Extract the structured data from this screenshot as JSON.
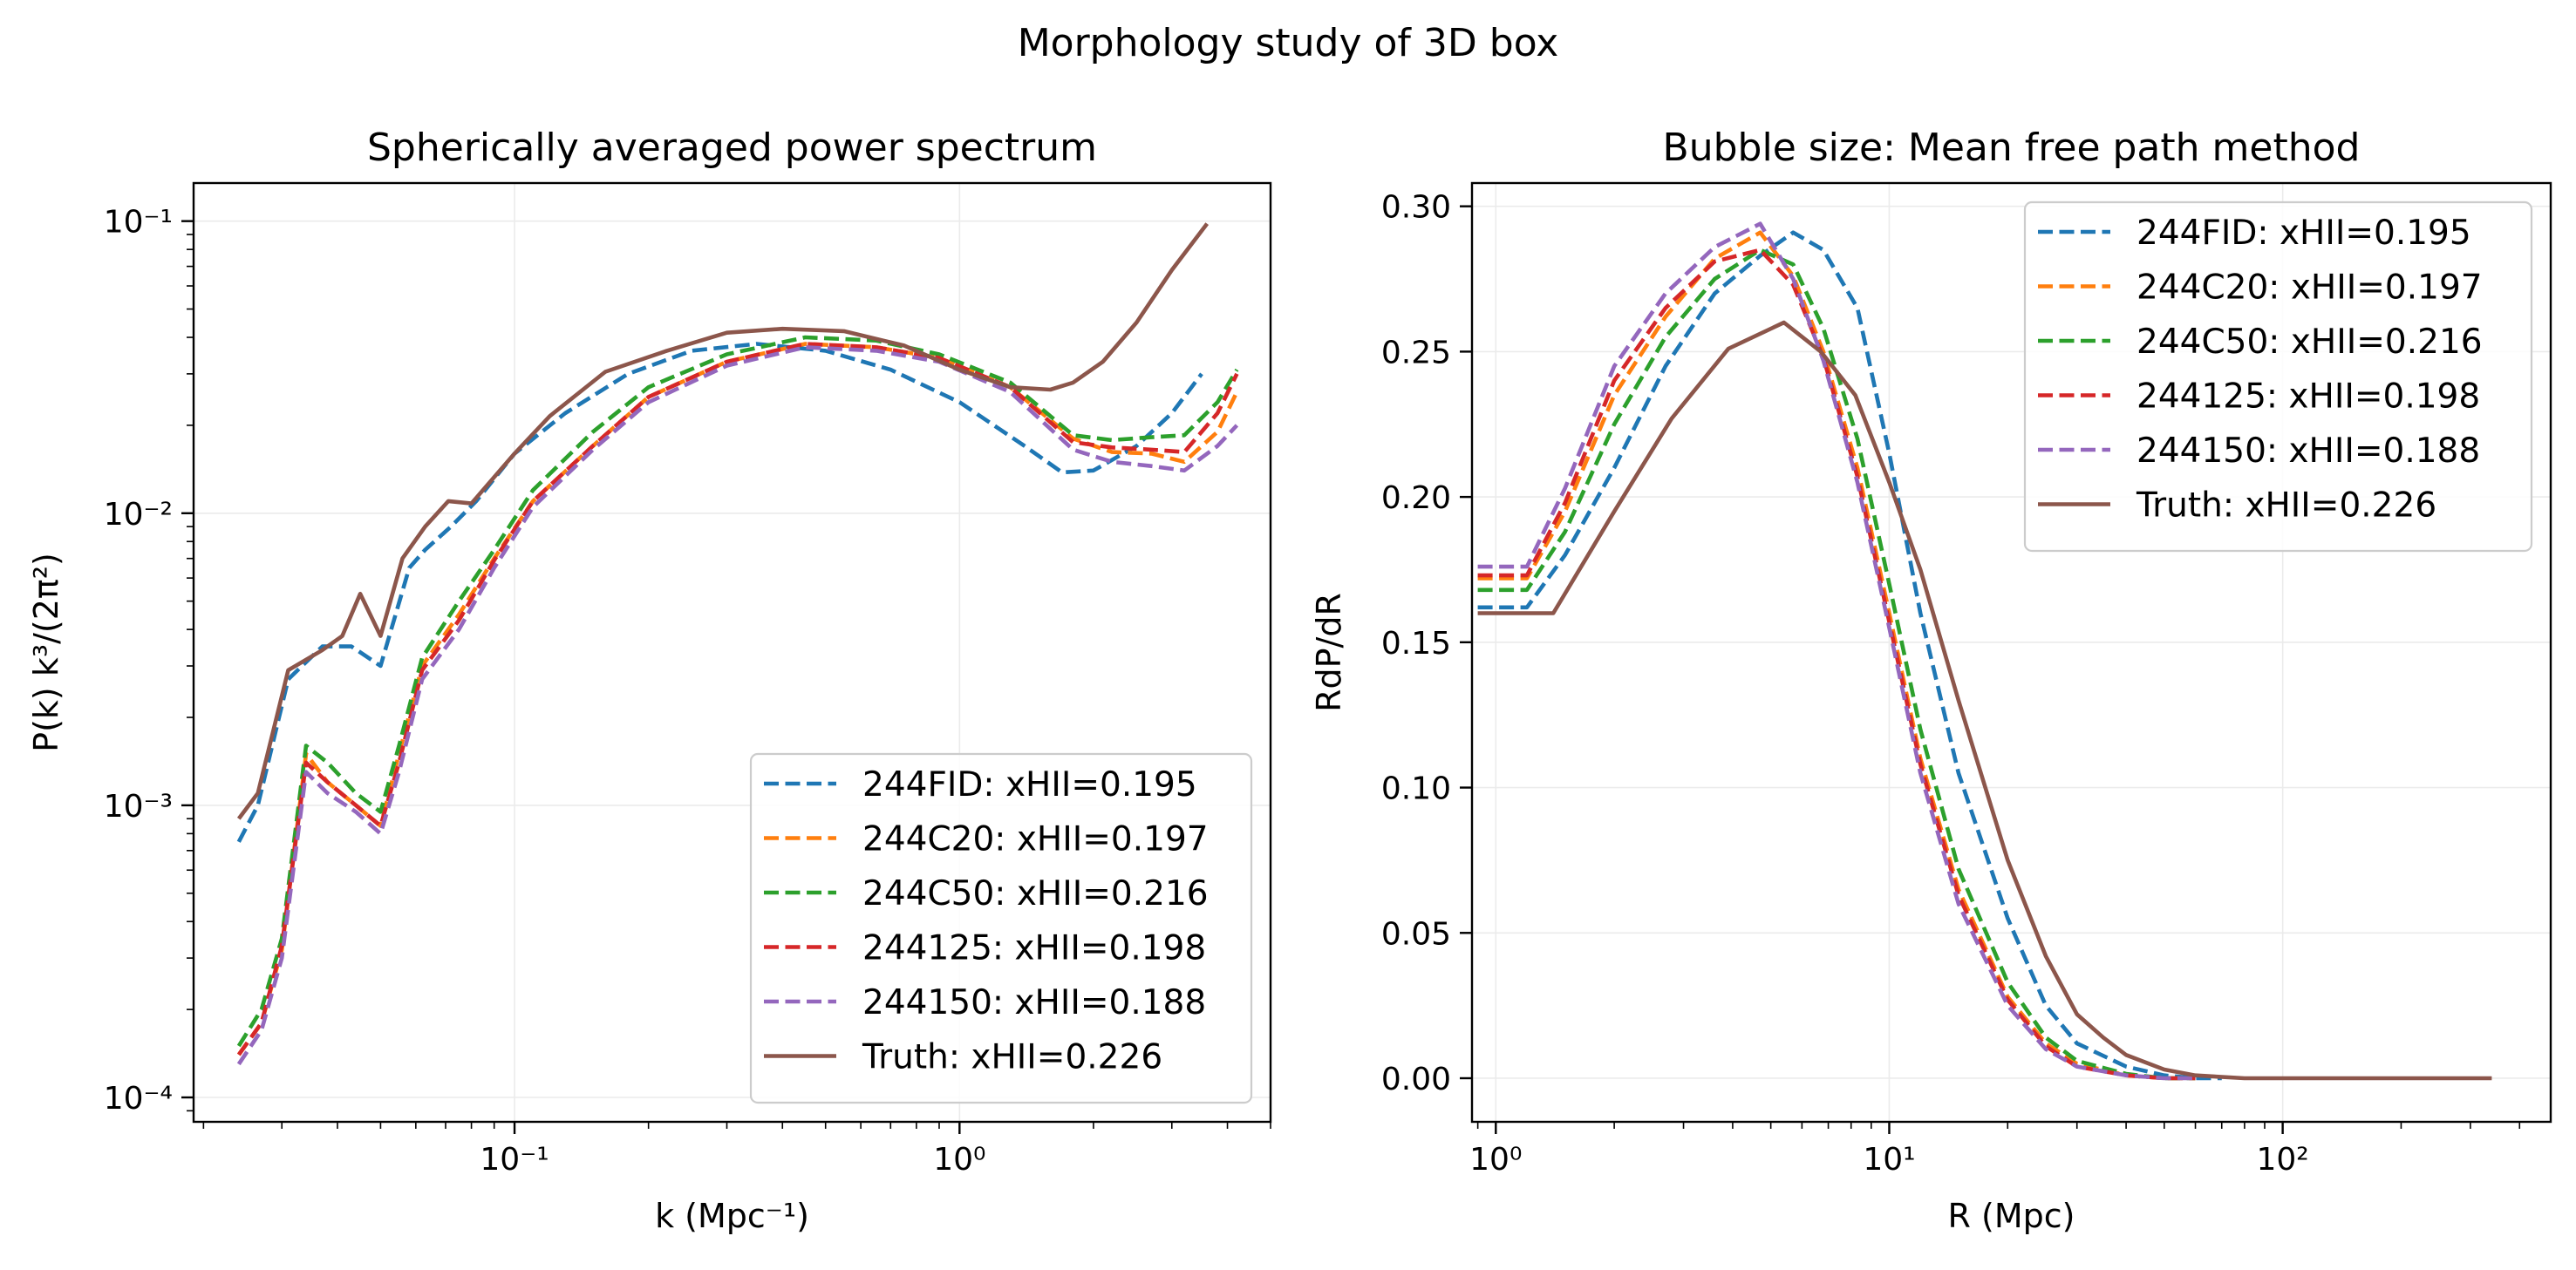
{
  "figure": {
    "suptitle": "Morphology study of 3D box"
  },
  "chart_data": [
    {
      "id": "ps",
      "type": "line",
      "title": "Spherically averaged power spectrum",
      "xlabel": "k (Mpc⁻¹)",
      "ylabel": "P(k) k³/(2π²)",
      "xscale": "log",
      "yscale": "log",
      "xlim": [
        0.019,
        5.0
      ],
      "ylim": [
        8.25e-05,
        0.135
      ],
      "xticks": [
        {
          "value": 0.1,
          "label": "10⁻¹"
        },
        {
          "value": 1,
          "label": "10⁰"
        }
      ],
      "yticks": [
        {
          "value": 0.0001,
          "label": "10⁻⁴"
        },
        {
          "value": 0.001,
          "label": "10⁻³"
        },
        {
          "value": 0.01,
          "label": "10⁻²"
        },
        {
          "value": 0.1,
          "label": "10⁻¹"
        }
      ],
      "grid": true,
      "legend_position": "lower-right",
      "series": [
        {
          "name": "244FID: xHII=0.195",
          "color": "#1f77b4",
          "dash": "dashed",
          "x": [
            0.024,
            0.0265,
            0.031,
            0.037,
            0.043,
            0.05,
            0.058,
            0.063,
            0.072,
            0.082,
            0.1,
            0.13,
            0.18,
            0.25,
            0.35,
            0.5,
            0.7,
            1.0,
            1.4,
            1.7,
            2.0,
            2.5,
            3.0,
            3.5
          ],
          "y": [
            0.00075,
            0.001,
            0.0027,
            0.0035,
            0.0035,
            0.003,
            0.0065,
            0.0075,
            0.009,
            0.011,
            0.016,
            0.022,
            0.03,
            0.036,
            0.038,
            0.036,
            0.031,
            0.024,
            0.017,
            0.0138,
            0.014,
            0.017,
            0.022,
            0.03
          ]
        },
        {
          "name": "244C20: xHII=0.197",
          "color": "#ff7f0e",
          "dash": "dashed",
          "x": [
            0.024,
            0.027,
            0.03,
            0.034,
            0.038,
            0.044,
            0.05,
            0.055,
            0.062,
            0.075,
            0.09,
            0.11,
            0.15,
            0.2,
            0.3,
            0.45,
            0.65,
            0.9,
            1.3,
            1.8,
            2.2,
            2.7,
            3.2,
            3.8,
            4.2
          ],
          "y": [
            0.00014,
            0.00018,
            0.00032,
            0.0015,
            0.0012,
            0.001,
            0.00085,
            0.0015,
            0.003,
            0.0045,
            0.007,
            0.011,
            0.017,
            0.025,
            0.033,
            0.038,
            0.037,
            0.034,
            0.027,
            0.018,
            0.0162,
            0.016,
            0.015,
            0.019,
            0.026
          ]
        },
        {
          "name": "244C50: xHII=0.216",
          "color": "#2ca02c",
          "dash": "dashed",
          "x": [
            0.024,
            0.027,
            0.03,
            0.034,
            0.038,
            0.044,
            0.05,
            0.055,
            0.062,
            0.075,
            0.09,
            0.11,
            0.15,
            0.2,
            0.3,
            0.45,
            0.65,
            0.9,
            1.3,
            1.8,
            2.2,
            2.7,
            3.2,
            3.8,
            4.2
          ],
          "y": [
            0.00015,
            0.0002,
            0.00035,
            0.0016,
            0.0014,
            0.0011,
            0.00095,
            0.0016,
            0.0032,
            0.005,
            0.0075,
            0.012,
            0.019,
            0.027,
            0.035,
            0.04,
            0.039,
            0.035,
            0.028,
            0.0185,
            0.0178,
            0.0182,
            0.0185,
            0.024,
            0.031
          ]
        },
        {
          "name": "244125: xHII=0.198",
          "color": "#d62728",
          "dash": "dashed",
          "x": [
            0.024,
            0.027,
            0.03,
            0.034,
            0.038,
            0.044,
            0.05,
            0.055,
            0.062,
            0.075,
            0.09,
            0.11,
            0.15,
            0.2,
            0.3,
            0.45,
            0.65,
            0.9,
            1.3,
            1.8,
            2.2,
            2.7,
            3.2,
            3.8,
            4.2
          ],
          "y": [
            0.00014,
            0.00018,
            0.00033,
            0.0014,
            0.0012,
            0.001,
            0.00085,
            0.0014,
            0.0029,
            0.0043,
            0.0069,
            0.011,
            0.017,
            0.025,
            0.033,
            0.038,
            0.037,
            0.034,
            0.027,
            0.0175,
            0.0168,
            0.0165,
            0.0162,
            0.022,
            0.03
          ]
        },
        {
          "name": "244150: xHII=0.188",
          "color": "#9467bd",
          "dash": "dashed",
          "x": [
            0.024,
            0.027,
            0.03,
            0.034,
            0.038,
            0.044,
            0.05,
            0.055,
            0.062,
            0.075,
            0.09,
            0.11,
            0.15,
            0.2,
            0.3,
            0.45,
            0.65,
            0.9,
            1.3,
            1.8,
            2.2,
            2.7,
            3.2,
            3.8,
            4.2
          ],
          "y": [
            0.00013,
            0.00017,
            0.0003,
            0.0013,
            0.0011,
            0.00095,
            0.0008,
            0.0013,
            0.0027,
            0.004,
            0.0065,
            0.0105,
            0.0165,
            0.024,
            0.032,
            0.037,
            0.036,
            0.033,
            0.026,
            0.0165,
            0.015,
            0.0145,
            0.014,
            0.017,
            0.02
          ]
        },
        {
          "name": "Truth: xHII=0.226",
          "color": "#8c564b",
          "dash": "solid",
          "x": [
            0.024,
            0.0265,
            0.031,
            0.037,
            0.041,
            0.045,
            0.05,
            0.056,
            0.063,
            0.071,
            0.08,
            0.1,
            0.12,
            0.16,
            0.22,
            0.3,
            0.4,
            0.55,
            0.75,
            1.0,
            1.3,
            1.6,
            1.8,
            2.1,
            2.5,
            3.0,
            3.6
          ],
          "y": [
            0.0009,
            0.0011,
            0.0029,
            0.0034,
            0.0038,
            0.0053,
            0.0038,
            0.007,
            0.009,
            0.011,
            0.0108,
            0.016,
            0.0215,
            0.0305,
            0.036,
            0.0415,
            0.0428,
            0.042,
            0.0375,
            0.031,
            0.027,
            0.0265,
            0.028,
            0.033,
            0.045,
            0.068,
            0.098
          ]
        }
      ]
    },
    {
      "id": "bs",
      "type": "line",
      "title": "Bubble size: Mean free path method",
      "xlabel": "R (Mpc)",
      "ylabel": "RdP/dR",
      "xscale": "log",
      "yscale": "linear",
      "xlim": [
        0.87,
        480
      ],
      "ylim": [
        -0.015,
        0.308
      ],
      "xticks": [
        {
          "value": 1,
          "label": "10⁰"
        },
        {
          "value": 10,
          "label": "10¹"
        },
        {
          "value": 100,
          "label": "10²"
        }
      ],
      "yticks": [
        {
          "value": 0.0,
          "label": "0.00"
        },
        {
          "value": 0.05,
          "label": "0.05"
        },
        {
          "value": 0.1,
          "label": "0.10"
        },
        {
          "value": 0.15,
          "label": "0.15"
        },
        {
          "value": 0.2,
          "label": "0.20"
        },
        {
          "value": 0.25,
          "label": "0.25"
        },
        {
          "value": 0.3,
          "label": "0.30"
        }
      ],
      "grid": true,
      "legend_position": "upper-right",
      "series": [
        {
          "name": "244FID: xHII=0.195",
          "color": "#1f77b4",
          "dash": "dashed",
          "x": [
            0.9,
            1.2,
            1.5,
            2.0,
            2.7,
            3.6,
            4.7,
            5.7,
            6.8,
            8.3,
            10,
            12,
            15,
            20,
            25,
            30,
            40,
            50,
            60,
            70
          ],
          "y": [
            0.162,
            0.162,
            0.18,
            0.21,
            0.245,
            0.27,
            0.283,
            0.291,
            0.285,
            0.265,
            0.215,
            0.16,
            0.105,
            0.055,
            0.025,
            0.012,
            0.004,
            0.001,
            0.0,
            0.0
          ]
        },
        {
          "name": "244C20: xHII=0.197",
          "color": "#ff7f0e",
          "dash": "dashed",
          "x": [
            0.9,
            1.2,
            1.5,
            2.0,
            2.7,
            3.6,
            4.7,
            5.7,
            6.8,
            8.3,
            10,
            12,
            15,
            20,
            25,
            30,
            40,
            50,
            60
          ],
          "y": [
            0.172,
            0.172,
            0.195,
            0.235,
            0.262,
            0.282,
            0.291,
            0.276,
            0.25,
            0.21,
            0.16,
            0.11,
            0.065,
            0.028,
            0.012,
            0.005,
            0.001,
            0.0,
            0.0
          ]
        },
        {
          "name": "244C50: xHII=0.216",
          "color": "#2ca02c",
          "dash": "dashed",
          "x": [
            0.9,
            1.2,
            1.5,
            2.0,
            2.7,
            3.6,
            4.7,
            5.7,
            6.8,
            8.3,
            10,
            12,
            15,
            20,
            25,
            30,
            40,
            50,
            60
          ],
          "y": [
            0.168,
            0.168,
            0.188,
            0.225,
            0.255,
            0.275,
            0.285,
            0.28,
            0.258,
            0.22,
            0.17,
            0.12,
            0.072,
            0.033,
            0.014,
            0.006,
            0.0015,
            0.0,
            0.0
          ]
        },
        {
          "name": "244125: xHII=0.198",
          "color": "#d62728",
          "dash": "dashed",
          "x": [
            0.9,
            1.2,
            1.5,
            2.0,
            2.7,
            3.6,
            4.7,
            5.7,
            6.8,
            8.3,
            10,
            12,
            15,
            20,
            25,
            30,
            40,
            50,
            60
          ],
          "y": [
            0.173,
            0.173,
            0.198,
            0.24,
            0.265,
            0.281,
            0.285,
            0.273,
            0.248,
            0.207,
            0.157,
            0.108,
            0.063,
            0.027,
            0.011,
            0.004,
            0.001,
            0.0,
            0.0
          ]
        },
        {
          "name": "244150: xHII=0.188",
          "color": "#9467bd",
          "dash": "dashed",
          "x": [
            0.9,
            1.2,
            1.5,
            2.0,
            2.7,
            3.6,
            4.7,
            5.7,
            6.8,
            8.3,
            10,
            12,
            15,
            20,
            25,
            30,
            40,
            50,
            60
          ],
          "y": [
            0.176,
            0.176,
            0.203,
            0.245,
            0.27,
            0.286,
            0.294,
            0.275,
            0.247,
            0.205,
            0.155,
            0.105,
            0.06,
            0.025,
            0.01,
            0.004,
            0.001,
            0.0,
            0.0
          ]
        },
        {
          "name": "Truth: xHII=0.226",
          "color": "#8c564b",
          "dash": "solid",
          "x": [
            0.9,
            1.4,
            2.0,
            2.8,
            3.9,
            5.4,
            6.7,
            8.2,
            10,
            12,
            15,
            20,
            25,
            30,
            35,
            40,
            50,
            60,
            80,
            100,
            150,
            200,
            300,
            340
          ],
          "y": [
            0.16,
            0.16,
            0.195,
            0.227,
            0.251,
            0.26,
            0.25,
            0.235,
            0.205,
            0.175,
            0.13,
            0.075,
            0.042,
            0.022,
            0.014,
            0.008,
            0.003,
            0.001,
            0.0,
            0.0,
            0.0,
            0.0,
            0.0,
            0.0
          ]
        }
      ]
    }
  ]
}
